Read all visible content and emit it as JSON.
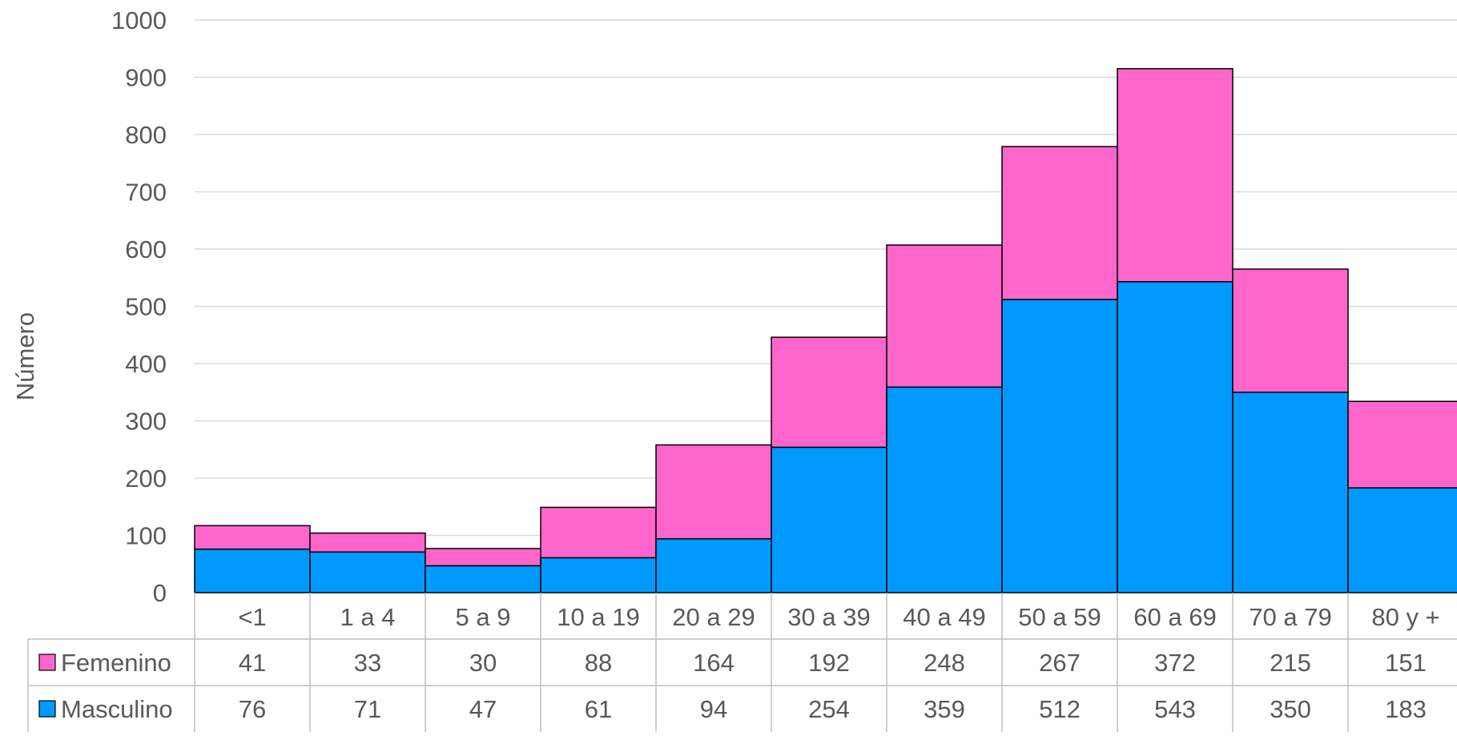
{
  "chart_data": {
    "type": "bar",
    "stacked": true,
    "ylabel": "Número",
    "ylim": [
      0,
      1000
    ],
    "yticks": [
      0,
      100,
      200,
      300,
      400,
      500,
      600,
      700,
      800,
      900,
      1000
    ],
    "grid": true,
    "legend": "data-table-left",
    "categories": [
      "<1",
      "1 a 4",
      "5 a 9",
      "10 a 19",
      "20 a 29",
      "30 a 39",
      "40 a 49",
      "50 a 59",
      "60 a 69",
      "70 a 79",
      "80 y +"
    ],
    "series": [
      {
        "name": "Masculino",
        "color": "#0099FF",
        "values": [
          76,
          71,
          47,
          61,
          94,
          254,
          359,
          512,
          543,
          350,
          183
        ]
      },
      {
        "name": "Femenino",
        "color": "#FF66CC",
        "values": [
          41,
          33,
          30,
          88,
          164,
          192,
          248,
          267,
          372,
          215,
          151
        ]
      }
    ],
    "data_table_rows": [
      "Femenino",
      "Masculino"
    ]
  },
  "colors": {
    "grid": "#D9D9D9",
    "border": "#000000",
    "table_line": "#BFBFBF",
    "text": "#595959"
  }
}
